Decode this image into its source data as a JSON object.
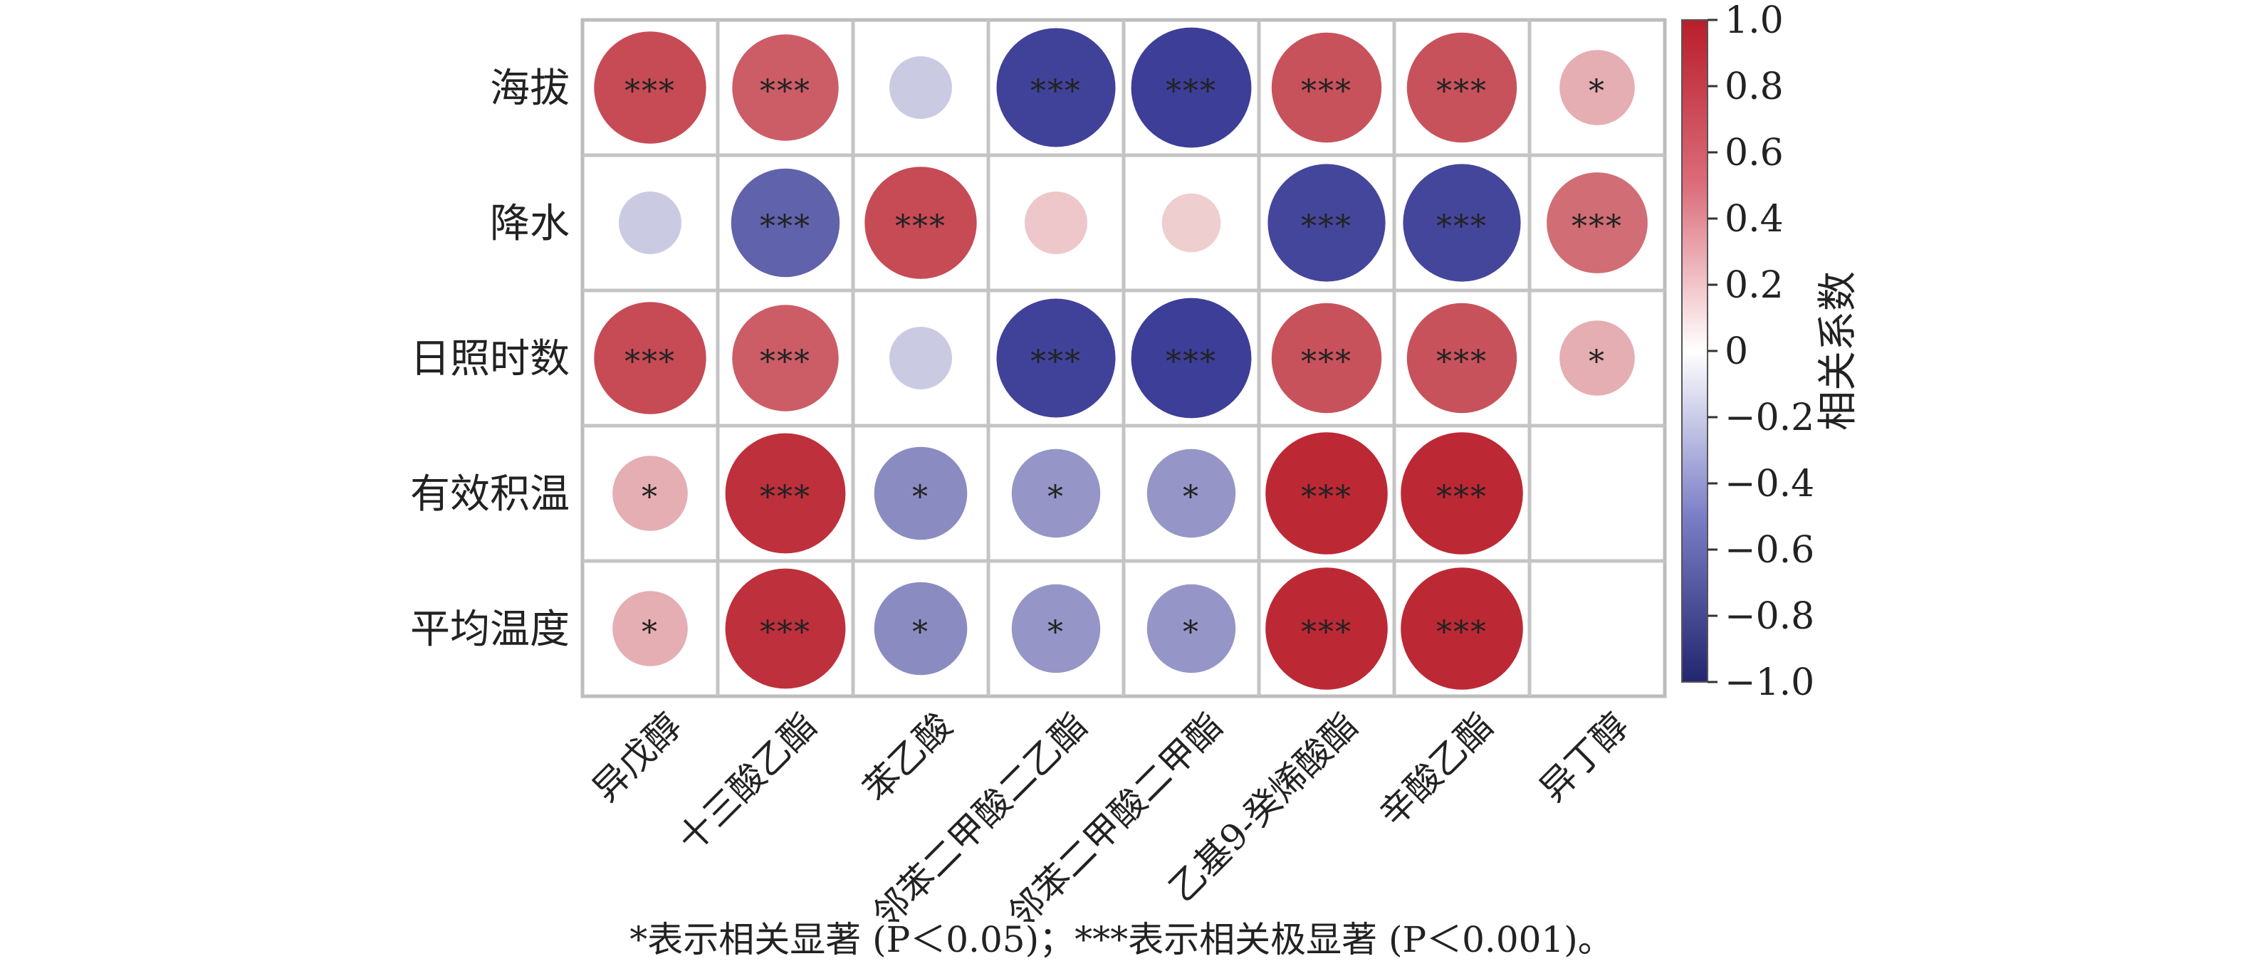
{
  "chart_data": {
    "type": "heatmap",
    "variant": "circle-correlation",
    "rows": [
      "海拔",
      "降水",
      "日照时数",
      "有效积温",
      "平均温度"
    ],
    "columns": [
      "异戊醇",
      "十三酸乙酯",
      "苯乙酸",
      "邻苯二甲酸二乙酯",
      "邻苯二甲酸二甲酯",
      "乙基9-癸烯酸酯",
      "辛酸乙酯",
      "异丁醇"
    ],
    "values": [
      [
        0.8,
        0.72,
        -0.25,
        -0.9,
        -0.92,
        0.77,
        0.77,
        0.36
      ],
      [
        -0.25,
        -0.75,
        0.8,
        0.25,
        0.22,
        -0.88,
        -0.88,
        0.65
      ],
      [
        0.8,
        0.72,
        -0.25,
        -0.9,
        -0.92,
        0.77,
        0.77,
        0.36
      ],
      [
        0.36,
        0.92,
        -0.55,
        -0.5,
        -0.5,
        0.95,
        0.95,
        null
      ],
      [
        0.36,
        0.92,
        -0.55,
        -0.5,
        -0.5,
        0.95,
        0.95,
        null
      ]
    ],
    "significance": [
      [
        "***",
        "***",
        "",
        "***",
        "***",
        "***",
        "***",
        "*"
      ],
      [
        "",
        "***",
        "***",
        "",
        "",
        "***",
        "***",
        "***"
      ],
      [
        "***",
        "***",
        "",
        "***",
        "***",
        "***",
        "***",
        "*"
      ],
      [
        "*",
        "***",
        "*",
        "*",
        "*",
        "***",
        "***",
        ""
      ],
      [
        "*",
        "***",
        "*",
        "*",
        "*",
        "***",
        "***",
        ""
      ]
    ],
    "colorbar": {
      "label": "相关系数",
      "ticks": [
        "1.0",
        "0.8",
        "0.6",
        "0.4",
        "0.2",
        "0",
        "−0.2",
        "−0.4",
        "−0.6",
        "−0.8",
        "−1.0"
      ],
      "range": [
        -1.0,
        1.0
      ],
      "colors": {
        "negative": "#2b2d8f",
        "neutral": "#ffffff",
        "positive": "#b81e2a"
      }
    }
  },
  "caption": "*表示相关显著 (P＜0.05)；***表示相关极显著 (P＜0.001)。"
}
